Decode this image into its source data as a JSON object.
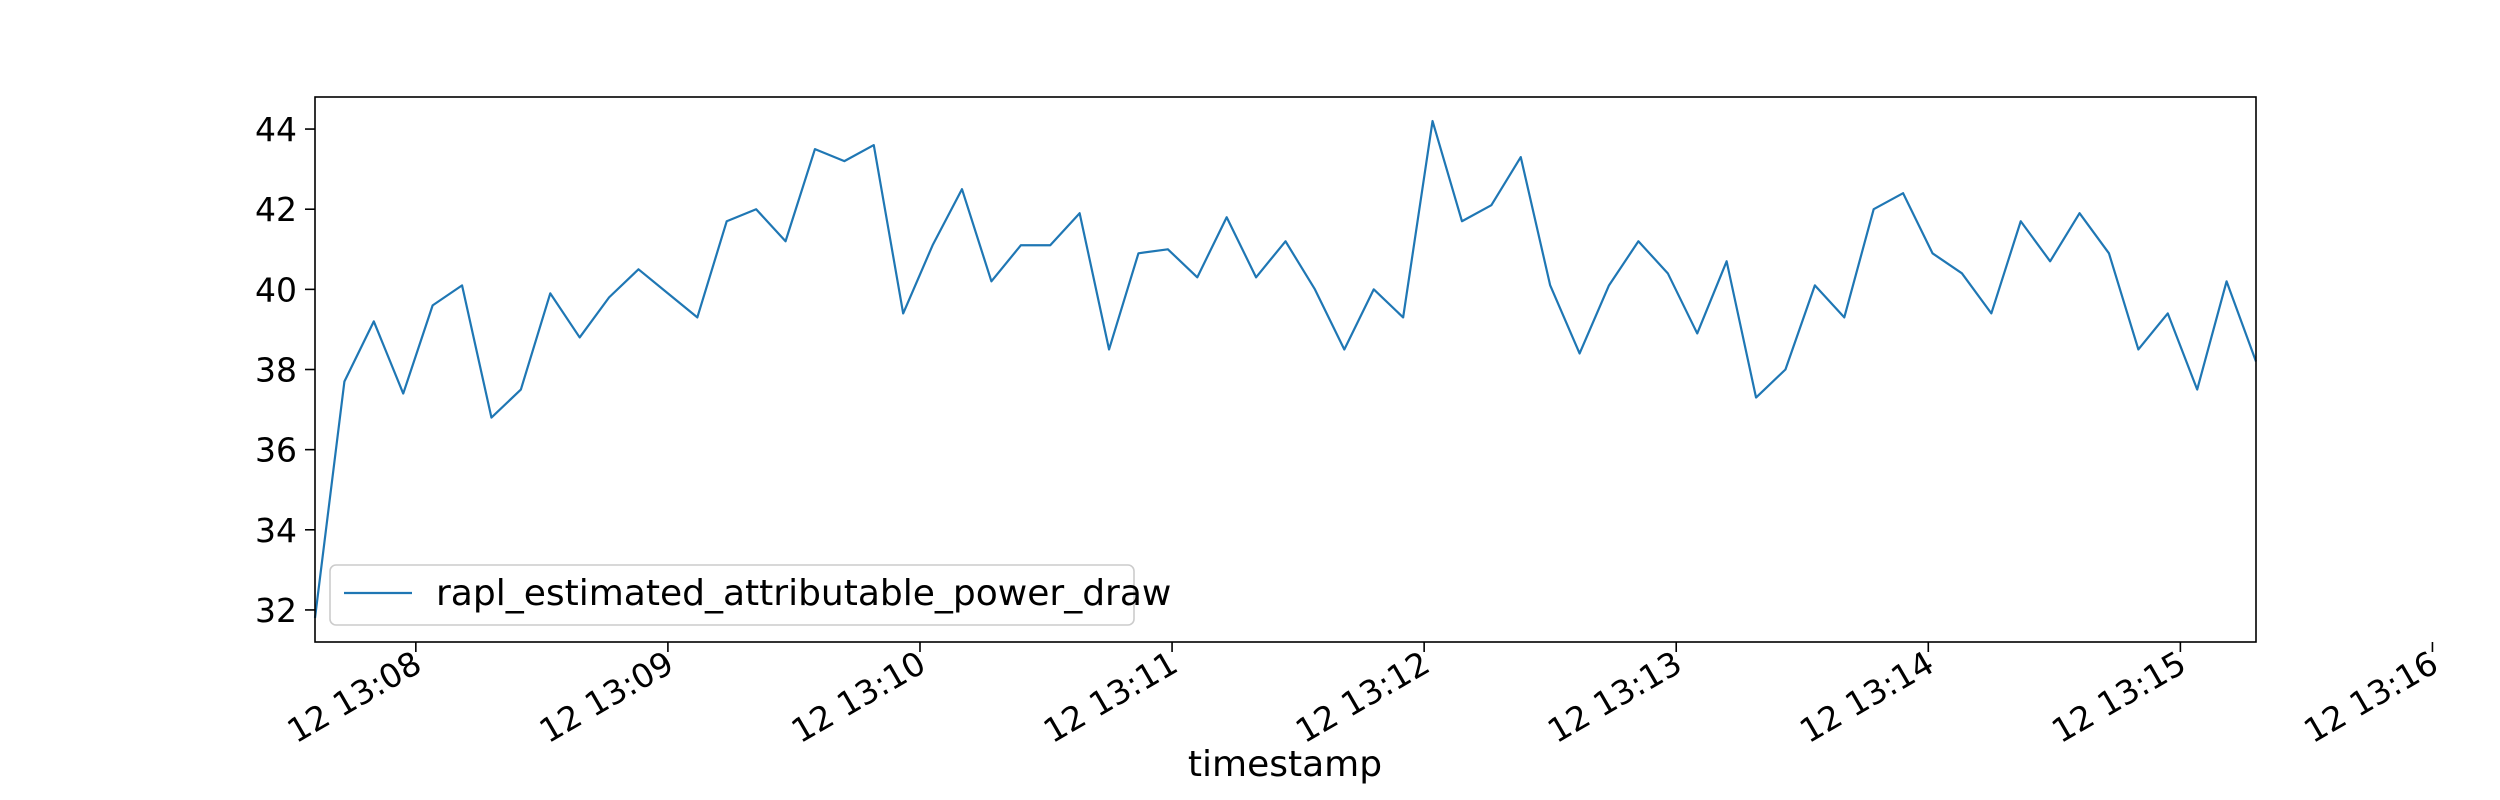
{
  "chart_data": {
    "type": "line",
    "xlabel": "timestamp",
    "ylabel": "",
    "grid": false,
    "legend_position": "lower-left",
    "colors": {
      "series": "#1f77b4",
      "axis": "#000000",
      "background": "#ffffff"
    },
    "x_start_time": "13:07:36",
    "x_interval_seconds": 7,
    "x_ticks": [
      {
        "time": "13:08:00",
        "label": "12 13:08"
      },
      {
        "time": "13:09:00",
        "label": "12 13:09"
      },
      {
        "time": "13:10:00",
        "label": "12 13:10"
      },
      {
        "time": "13:11:00",
        "label": "12 13:11"
      },
      {
        "time": "13:12:00",
        "label": "12 13:12"
      },
      {
        "time": "13:13:00",
        "label": "12 13:13"
      },
      {
        "time": "13:14:00",
        "label": "12 13:14"
      },
      {
        "time": "13:15:00",
        "label": "12 13:15"
      },
      {
        "time": "13:16:00",
        "label": "12 13:16"
      }
    ],
    "ylim": [
      31.2,
      44.8
    ],
    "y_ticks": [
      32,
      34,
      36,
      38,
      40,
      42,
      44
    ],
    "series": [
      {
        "name": "rapl_estimated_attributable_power_draw",
        "values": [
          31.8,
          37.7,
          39.2,
          37.4,
          39.6,
          40.1,
          36.8,
          37.5,
          39.9,
          38.8,
          39.8,
          40.5,
          39.9,
          39.3,
          41.7,
          42.0,
          41.2,
          43.5,
          43.2,
          43.6,
          39.4,
          41.1,
          42.5,
          40.2,
          41.1,
          41.1,
          41.9,
          38.5,
          40.9,
          41.0,
          40.3,
          41.8,
          40.3,
          41.2,
          40.0,
          38.5,
          40.0,
          39.3,
          44.2,
          41.7,
          42.1,
          43.3,
          40.1,
          38.4,
          40.1,
          41.2,
          40.4,
          38.9,
          40.7,
          37.3,
          38.0,
          40.1,
          39.3,
          42.0,
          42.4,
          40.9,
          40.4,
          39.4,
          41.7,
          40.7,
          41.9,
          40.9,
          38.5,
          39.4,
          37.5,
          40.2,
          38.2
        ]
      }
    ]
  }
}
